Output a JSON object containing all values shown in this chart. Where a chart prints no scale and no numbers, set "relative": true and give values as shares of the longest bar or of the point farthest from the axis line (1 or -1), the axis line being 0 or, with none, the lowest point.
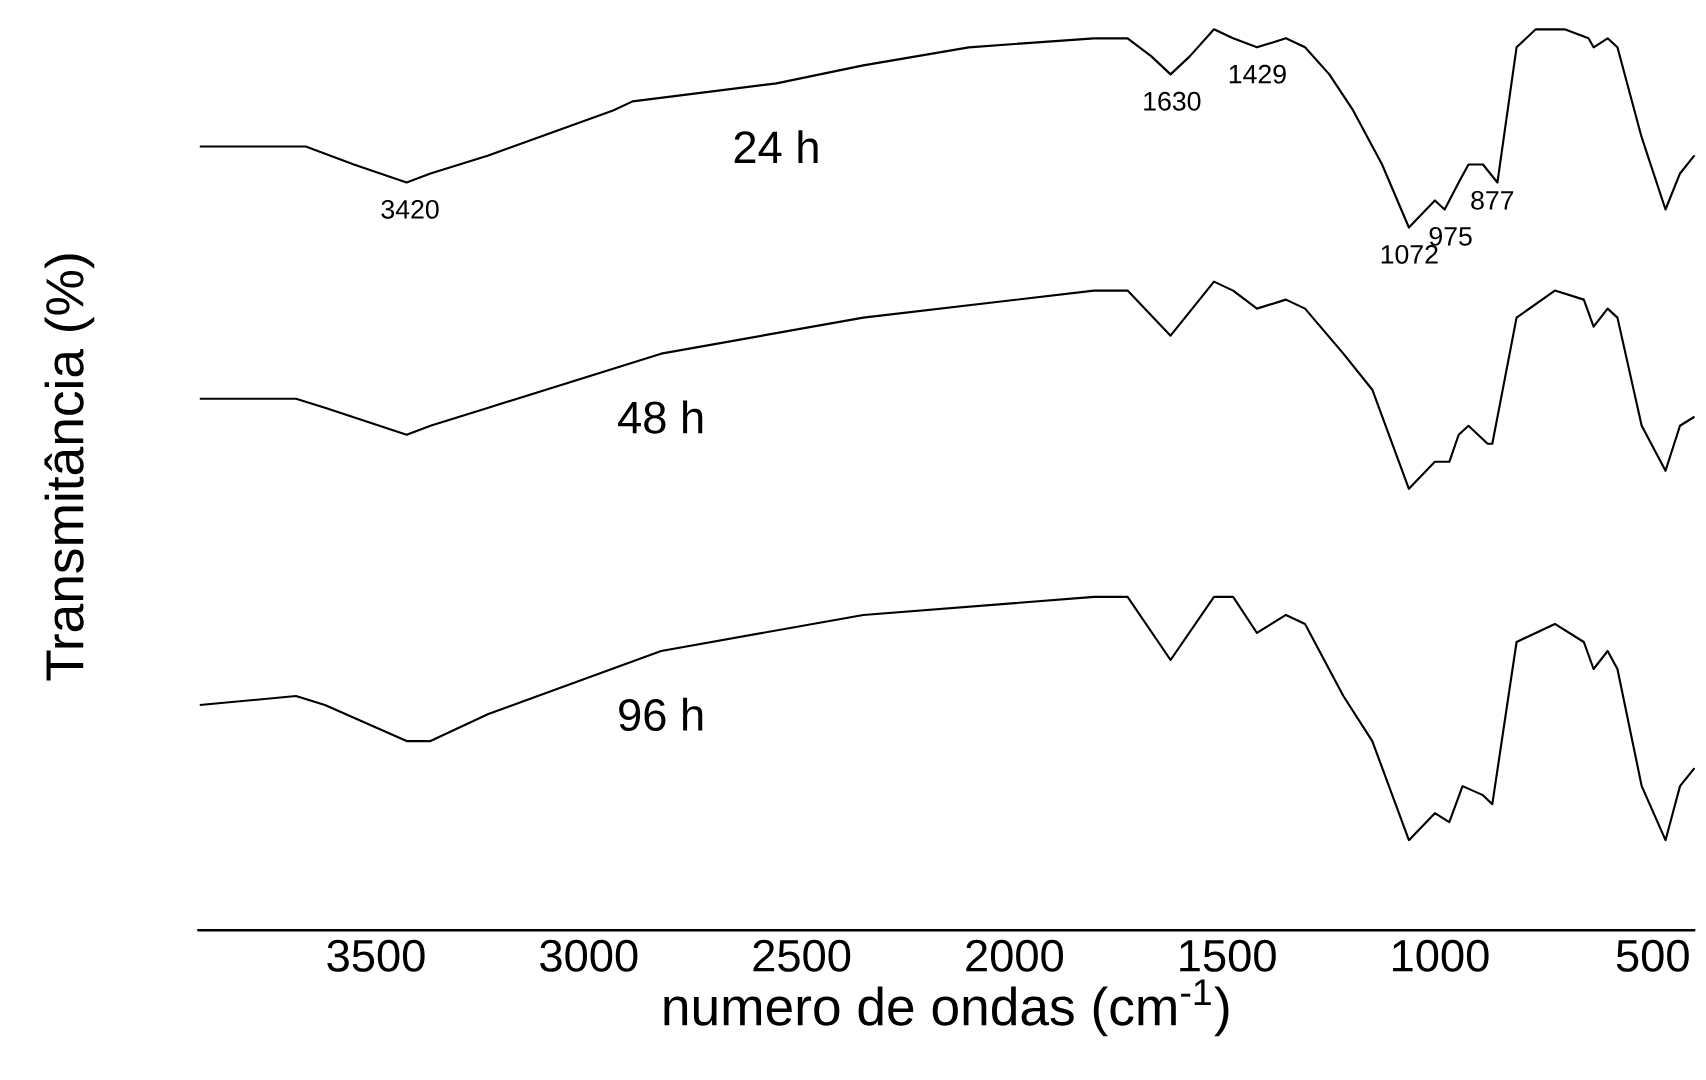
{
  "chart_data": {
    "type": "line",
    "xlabel": "numero de ondas (cm$^{-1}$)",
    "ylabel": "Transmitância (%)",
    "relative": true,
    "xlim": [
      3920,
      400
    ],
    "xticks": [
      3500,
      3000,
      2500,
      2000,
      1500,
      1000,
      500
    ],
    "series": [
      {
        "name": "24 h",
        "color": "#000000",
        "x": [
          3914,
          3733,
          3665,
          3552,
          3428,
          3372,
          3236,
          2943,
          2897,
          2559,
          2355,
          2107,
          1813,
          1734,
          1678,
          1633,
          1588,
          1531,
          1486,
          1430,
          1362,
          1317,
          1260,
          1204,
          1136,
          1073,
          1012,
          989,
          956,
          933,
          899,
          865,
          820,
          775,
          707,
          651,
          639,
          606,
          583,
          526,
          470,
          436,
          402
        ],
        "values": [
          0.87,
          0.87,
          0.87,
          0.85,
          0.83,
          0.84,
          0.86,
          0.91,
          0.92,
          0.94,
          0.96,
          0.98,
          0.99,
          0.99,
          0.97,
          0.95,
          0.97,
          1.0,
          0.99,
          0.98,
          0.99,
          0.98,
          0.95,
          0.91,
          0.85,
          0.78,
          0.81,
          0.8,
          0.83,
          0.85,
          0.85,
          0.83,
          0.98,
          1.0,
          1.0,
          0.99,
          0.98,
          0.99,
          0.98,
          0.88,
          0.8,
          0.84,
          0.86
        ]
      },
      {
        "name": "48 h",
        "color": "#000000",
        "x": [
          3914,
          3688,
          3620,
          3428,
          3372,
          3236,
          2830,
          2355,
          1813,
          1734,
          1633,
          1531,
          1486,
          1430,
          1362,
          1317,
          1227,
          1159,
          1073,
          1012,
          978,
          956,
          933,
          888,
          877,
          820,
          730,
          662,
          639,
          606,
          583,
          526,
          470,
          436,
          402
        ],
        "values": [
          0.59,
          0.59,
          0.58,
          0.55,
          0.56,
          0.58,
          0.64,
          0.68,
          0.71,
          0.71,
          0.66,
          0.72,
          0.71,
          0.69,
          0.7,
          0.69,
          0.64,
          0.6,
          0.49,
          0.52,
          0.52,
          0.55,
          0.56,
          0.54,
          0.54,
          0.68,
          0.71,
          0.7,
          0.67,
          0.69,
          0.68,
          0.56,
          0.51,
          0.56,
          0.57
        ]
      },
      {
        "name": "96 h",
        "color": "#000000",
        "x": [
          3914,
          3688,
          3620,
          3428,
          3372,
          3236,
          2830,
          2355,
          1813,
          1734,
          1633,
          1531,
          1486,
          1430,
          1362,
          1317,
          1227,
          1159,
          1073,
          1012,
          978,
          947,
          899,
          877,
          820,
          730,
          662,
          639,
          606,
          583,
          526,
          470,
          436,
          402
        ],
        "values": [
          0.25,
          0.26,
          0.25,
          0.21,
          0.21,
          0.24,
          0.31,
          0.35,
          0.37,
          0.37,
          0.3,
          0.37,
          0.37,
          0.33,
          0.35,
          0.34,
          0.26,
          0.21,
          0.1,
          0.13,
          0.12,
          0.16,
          0.15,
          0.14,
          0.32,
          0.34,
          0.32,
          0.29,
          0.31,
          0.29,
          0.16,
          0.1,
          0.16,
          0.18
        ]
      }
    ],
    "annotations": [
      {
        "text": "3420",
        "x": 3420,
        "y": 0.83
      },
      {
        "text": "1630",
        "x": 1630,
        "y": 0.95
      },
      {
        "text": "1429",
        "x": 1429,
        "y": 0.98
      },
      {
        "text": "1072",
        "x": 1072,
        "y": 0.78
      },
      {
        "text": "975",
        "x": 975,
        "y": 0.8
      },
      {
        "text": "877",
        "x": 877,
        "y": 0.84
      }
    ]
  }
}
